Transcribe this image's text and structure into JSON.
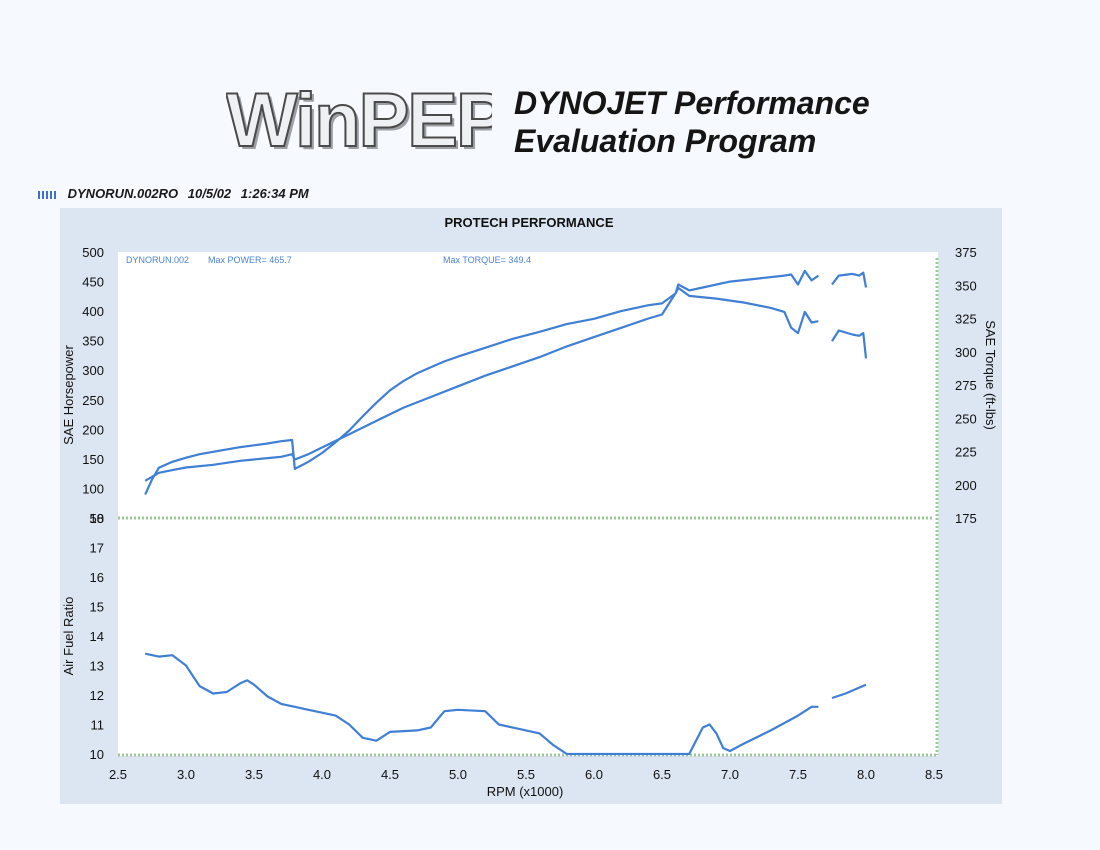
{
  "header": {
    "logo_text": "WinPEP",
    "title_line1": "DYNOJET Performance",
    "title_line2": "Evaluation Program"
  },
  "run_info": {
    "file": "DYNORUN.002RO",
    "date": "10/5/02",
    "time": "1:26:34 PM"
  },
  "colors": {
    "curve": "#3f7fd6",
    "panel": "#dbe6f2",
    "plot_bg": "#ffffff",
    "grid_accent": "#9fc59a"
  },
  "chart_data": [
    {
      "type": "line",
      "title": "PROTECH PERFORMANCE",
      "xlabel": "",
      "ylabel": "SAE Horsepower",
      "y2label": "SAE Torque (ft-lbs)",
      "xlim": [
        2.5,
        8.5
      ],
      "ylim": [
        50,
        500
      ],
      "y2lim": [
        175,
        375
      ],
      "yticks": [
        50,
        100,
        150,
        200,
        250,
        300,
        350,
        400,
        450,
        500
      ],
      "y2ticks": [
        175,
        200,
        225,
        250,
        275,
        300,
        325,
        350,
        375
      ],
      "annotations": {
        "run": "DYNORUN.002",
        "max_power": "Max POWER= 465.7",
        "max_torque": "Max TORQUE= 349.4"
      },
      "series": [
        {
          "axis": "left",
          "segments": [
            [
              [
                2.7,
                90
              ],
              [
                2.75,
                115
              ],
              [
                2.8,
                135
              ],
              [
                2.9,
                145
              ],
              [
                3.0,
                152
              ],
              [
                3.1,
                158
              ],
              [
                3.2,
                162
              ],
              [
                3.3,
                166
              ],
              [
                3.4,
                170
              ],
              [
                3.5,
                173
              ],
              [
                3.6,
                176
              ],
              [
                3.7,
                180
              ],
              [
                3.78,
                182
              ],
              [
                3.8,
                133
              ],
              [
                3.9,
                145
              ],
              [
                4.0,
                160
              ],
              [
                4.1,
                178
              ],
              [
                4.2,
                198
              ],
              [
                4.3,
                222
              ],
              [
                4.4,
                245
              ],
              [
                4.5,
                266
              ],
              [
                4.6,
                282
              ],
              [
                4.7,
                295
              ],
              [
                4.8,
                305
              ],
              [
                4.9,
                315
              ],
              [
                5.0,
                323
              ],
              [
                5.2,
                338
              ],
              [
                5.4,
                353
              ],
              [
                5.6,
                365
              ],
              [
                5.8,
                378
              ],
              [
                6.0,
                387
              ],
              [
                6.2,
                400
              ],
              [
                6.4,
                410
              ],
              [
                6.5,
                413
              ],
              [
                6.6,
                430
              ],
              [
                6.62,
                445
              ],
              [
                6.7,
                435
              ],
              [
                6.8,
                440
              ],
              [
                7.0,
                450
              ],
              [
                7.2,
                455
              ],
              [
                7.4,
                460
              ],
              [
                7.45,
                462
              ],
              [
                7.5,
                445
              ],
              [
                7.55,
                468
              ],
              [
                7.6,
                452
              ],
              [
                7.65,
                460
              ]
            ],
            [
              [
                7.75,
                445
              ],
              [
                7.8,
                460
              ],
              [
                7.9,
                463
              ],
              [
                7.95,
                460
              ],
              [
                7.98,
                465
              ],
              [
                8.0,
                440
              ]
            ]
          ]
        },
        {
          "axis": "right",
          "segments": [
            [
              [
                2.7,
                203
              ],
              [
                2.8,
                209
              ],
              [
                2.9,
                211
              ],
              [
                3.0,
                213
              ],
              [
                3.2,
                215
              ],
              [
                3.4,
                218
              ],
              [
                3.6,
                220
              ],
              [
                3.7,
                221
              ],
              [
                3.78,
                223
              ],
              [
                3.8,
                219
              ],
              [
                3.9,
                223
              ],
              [
                4.0,
                228
              ],
              [
                4.2,
                238
              ],
              [
                4.4,
                248
              ],
              [
                4.6,
                258
              ],
              [
                4.8,
                266
              ],
              [
                5.0,
                274
              ],
              [
                5.2,
                282
              ],
              [
                5.4,
                289
              ],
              [
                5.6,
                296
              ],
              [
                5.8,
                304
              ],
              [
                6.0,
                311
              ],
              [
                6.2,
                318
              ],
              [
                6.4,
                325
              ],
              [
                6.5,
                328
              ],
              [
                6.6,
                344
              ],
              [
                6.62,
                348
              ],
              [
                6.7,
                342
              ],
              [
                6.9,
                340
              ],
              [
                7.1,
                337
              ],
              [
                7.3,
                333
              ],
              [
                7.4,
                330
              ],
              [
                7.45,
                318
              ],
              [
                7.5,
                314
              ],
              [
                7.55,
                330
              ],
              [
                7.6,
                322
              ],
              [
                7.65,
                323
              ]
            ],
            [
              [
                7.75,
                308
              ],
              [
                7.8,
                316
              ],
              [
                7.9,
                313
              ],
              [
                7.95,
                312
              ],
              [
                7.98,
                314
              ],
              [
                8.0,
                295
              ]
            ]
          ]
        }
      ]
    },
    {
      "type": "line",
      "xlabel": "RPM (x1000)",
      "ylabel": "Air Fuel Ratio",
      "xlim": [
        2.5,
        8.5
      ],
      "ylim": [
        10,
        18
      ],
      "yticks": [
        10,
        11,
        12,
        13,
        14,
        15,
        16,
        17,
        18
      ],
      "xticks": [
        2.5,
        3.0,
        3.5,
        4.0,
        4.5,
        5.0,
        5.5,
        6.0,
        6.5,
        7.0,
        7.5,
        8.0,
        8.5
      ],
      "series": [
        {
          "segments": [
            [
              [
                2.7,
                13.4
              ],
              [
                2.8,
                13.3
              ],
              [
                2.9,
                13.35
              ],
              [
                3.0,
                13.0
              ],
              [
                3.1,
                12.3
              ],
              [
                3.2,
                12.05
              ],
              [
                3.3,
                12.1
              ],
              [
                3.4,
                12.4
              ],
              [
                3.45,
                12.5
              ],
              [
                3.5,
                12.35
              ],
              [
                3.6,
                11.95
              ],
              [
                3.7,
                11.7
              ],
              [
                3.8,
                11.6
              ],
              [
                3.9,
                11.5
              ],
              [
                4.0,
                11.4
              ],
              [
                4.1,
                11.3
              ],
              [
                4.2,
                11.0
              ],
              [
                4.3,
                10.55
              ],
              [
                4.4,
                10.45
              ],
              [
                4.5,
                10.75
              ],
              [
                4.7,
                10.8
              ],
              [
                4.8,
                10.9
              ],
              [
                4.9,
                11.45
              ],
              [
                5.0,
                11.5
              ],
              [
                5.2,
                11.45
              ],
              [
                5.3,
                11.0
              ],
              [
                5.5,
                10.8
              ],
              [
                5.6,
                10.7
              ],
              [
                5.7,
                10.3
              ],
              [
                5.8,
                10.0
              ],
              [
                6.7,
                10.0
              ],
              [
                6.8,
                10.9
              ],
              [
                6.85,
                11.0
              ],
              [
                6.9,
                10.7
              ],
              [
                6.95,
                10.2
              ],
              [
                7.0,
                10.1
              ],
              [
                7.1,
                10.35
              ],
              [
                7.3,
                10.8
              ],
              [
                7.5,
                11.3
              ],
              [
                7.6,
                11.6
              ],
              [
                7.65,
                11.6
              ]
            ],
            [
              [
                7.75,
                11.9
              ],
              [
                7.85,
                12.05
              ],
              [
                7.95,
                12.25
              ],
              [
                8.0,
                12.35
              ]
            ]
          ]
        }
      ]
    }
  ]
}
